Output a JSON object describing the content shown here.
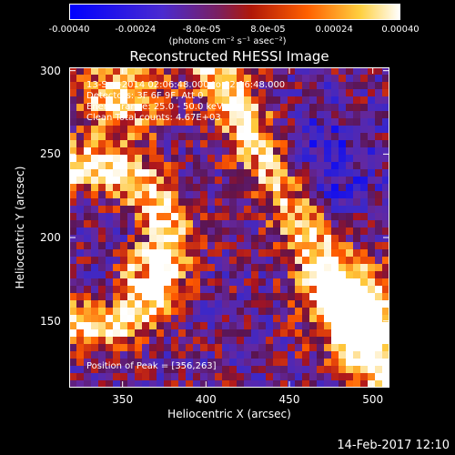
{
  "colorbar": {
    "ticks": [
      "-0.00040",
      "-0.00024",
      "-8.0e-05",
      "8.0e-05",
      "0.00024",
      "0.00040"
    ],
    "tick_values": [
      -0.0004,
      -0.00024,
      -8e-05,
      8e-05,
      0.00024,
      0.0004
    ],
    "range": [
      -0.0004,
      0.0004
    ],
    "label": "(photons cm⁻² s⁻¹ asec⁻²)",
    "colors": [
      "#0000ff",
      "#5020c0",
      "#8a1c5a",
      "#c02000",
      "#ff8000",
      "#ffffff"
    ]
  },
  "chart_data": {
    "type": "heatmap",
    "title": "Reconstructed RHESSI Image",
    "xlabel": "Heliocentric X (arcsec)",
    "ylabel": "Heliocentric Y (arcsec)",
    "xlim": [
      318,
      510
    ],
    "ylim": [
      110,
      302
    ],
    "xticks": [
      350,
      400,
      450,
      500
    ],
    "yticks": [
      150,
      200,
      250,
      300
    ],
    "peak": [
      356,
      263
    ],
    "annotations": [
      "13-Sep-2014 02:06:48.000 to 02:16:48.000",
      "Detectors: 3F 6F 9F, Att 0",
      "Energy range: 25.0 - 50.0 keV",
      "Clean    Total counts: 4.67E+03",
      "Position of Peak = [356,263]"
    ]
  },
  "footer": {
    "timestamp": "14-Feb-2017 12:10"
  }
}
